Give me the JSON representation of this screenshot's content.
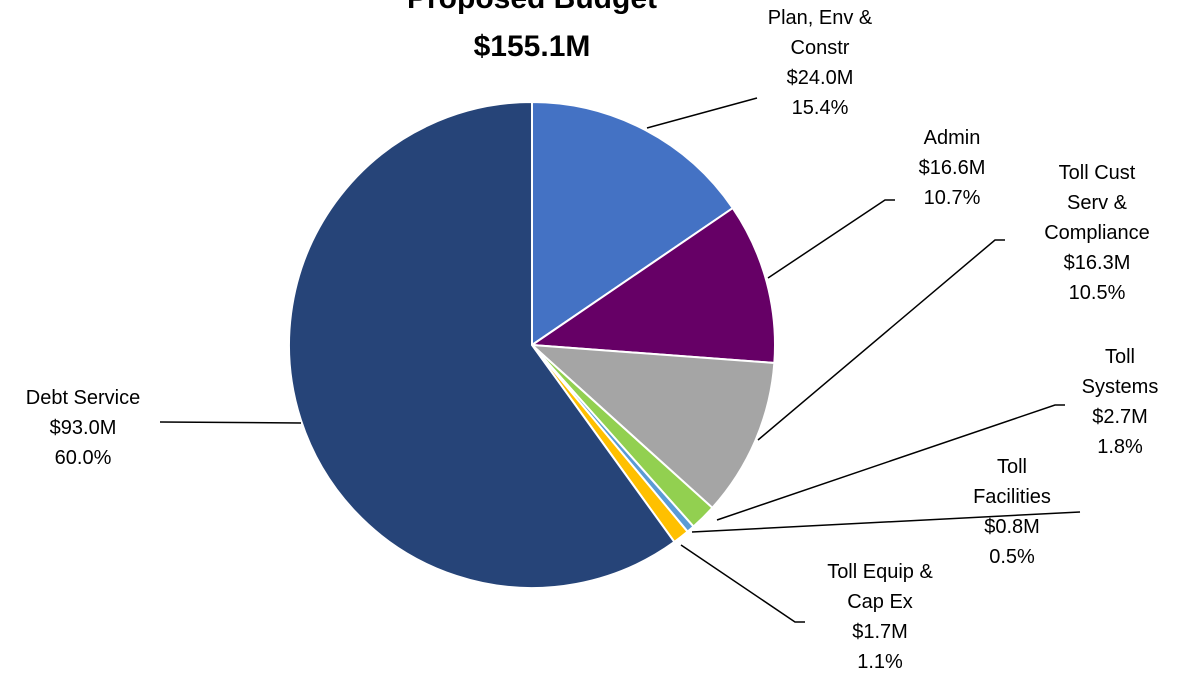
{
  "chart_data": {
    "type": "pie",
    "title": "Proposed Budget",
    "subtitle": "$155.1M",
    "categories": [
      "Plan, Env & Constr",
      "Admin",
      "Toll Cust Serv & Compliance",
      "Toll Systems",
      "Toll Facilities",
      "Toll Equip & Cap Ex",
      "Debt Service"
    ],
    "values": [
      24.0,
      16.6,
      16.3,
      2.7,
      0.8,
      1.7,
      93.0
    ],
    "value_labels": [
      "$24.0M",
      "$16.6M",
      "$16.3M",
      "$2.7M",
      "$0.8M",
      "$1.7M",
      "$93.0M"
    ],
    "percent_labels": [
      "15.4%",
      "10.7%",
      "10.5%",
      "1.8%",
      "0.5%",
      "1.1%",
      "60.0%"
    ],
    "colors": [
      "#4472c4",
      "#660066",
      "#a5a5a5",
      "#92d050",
      "#5b9bd5",
      "#ffc000",
      "#264478"
    ]
  }
}
